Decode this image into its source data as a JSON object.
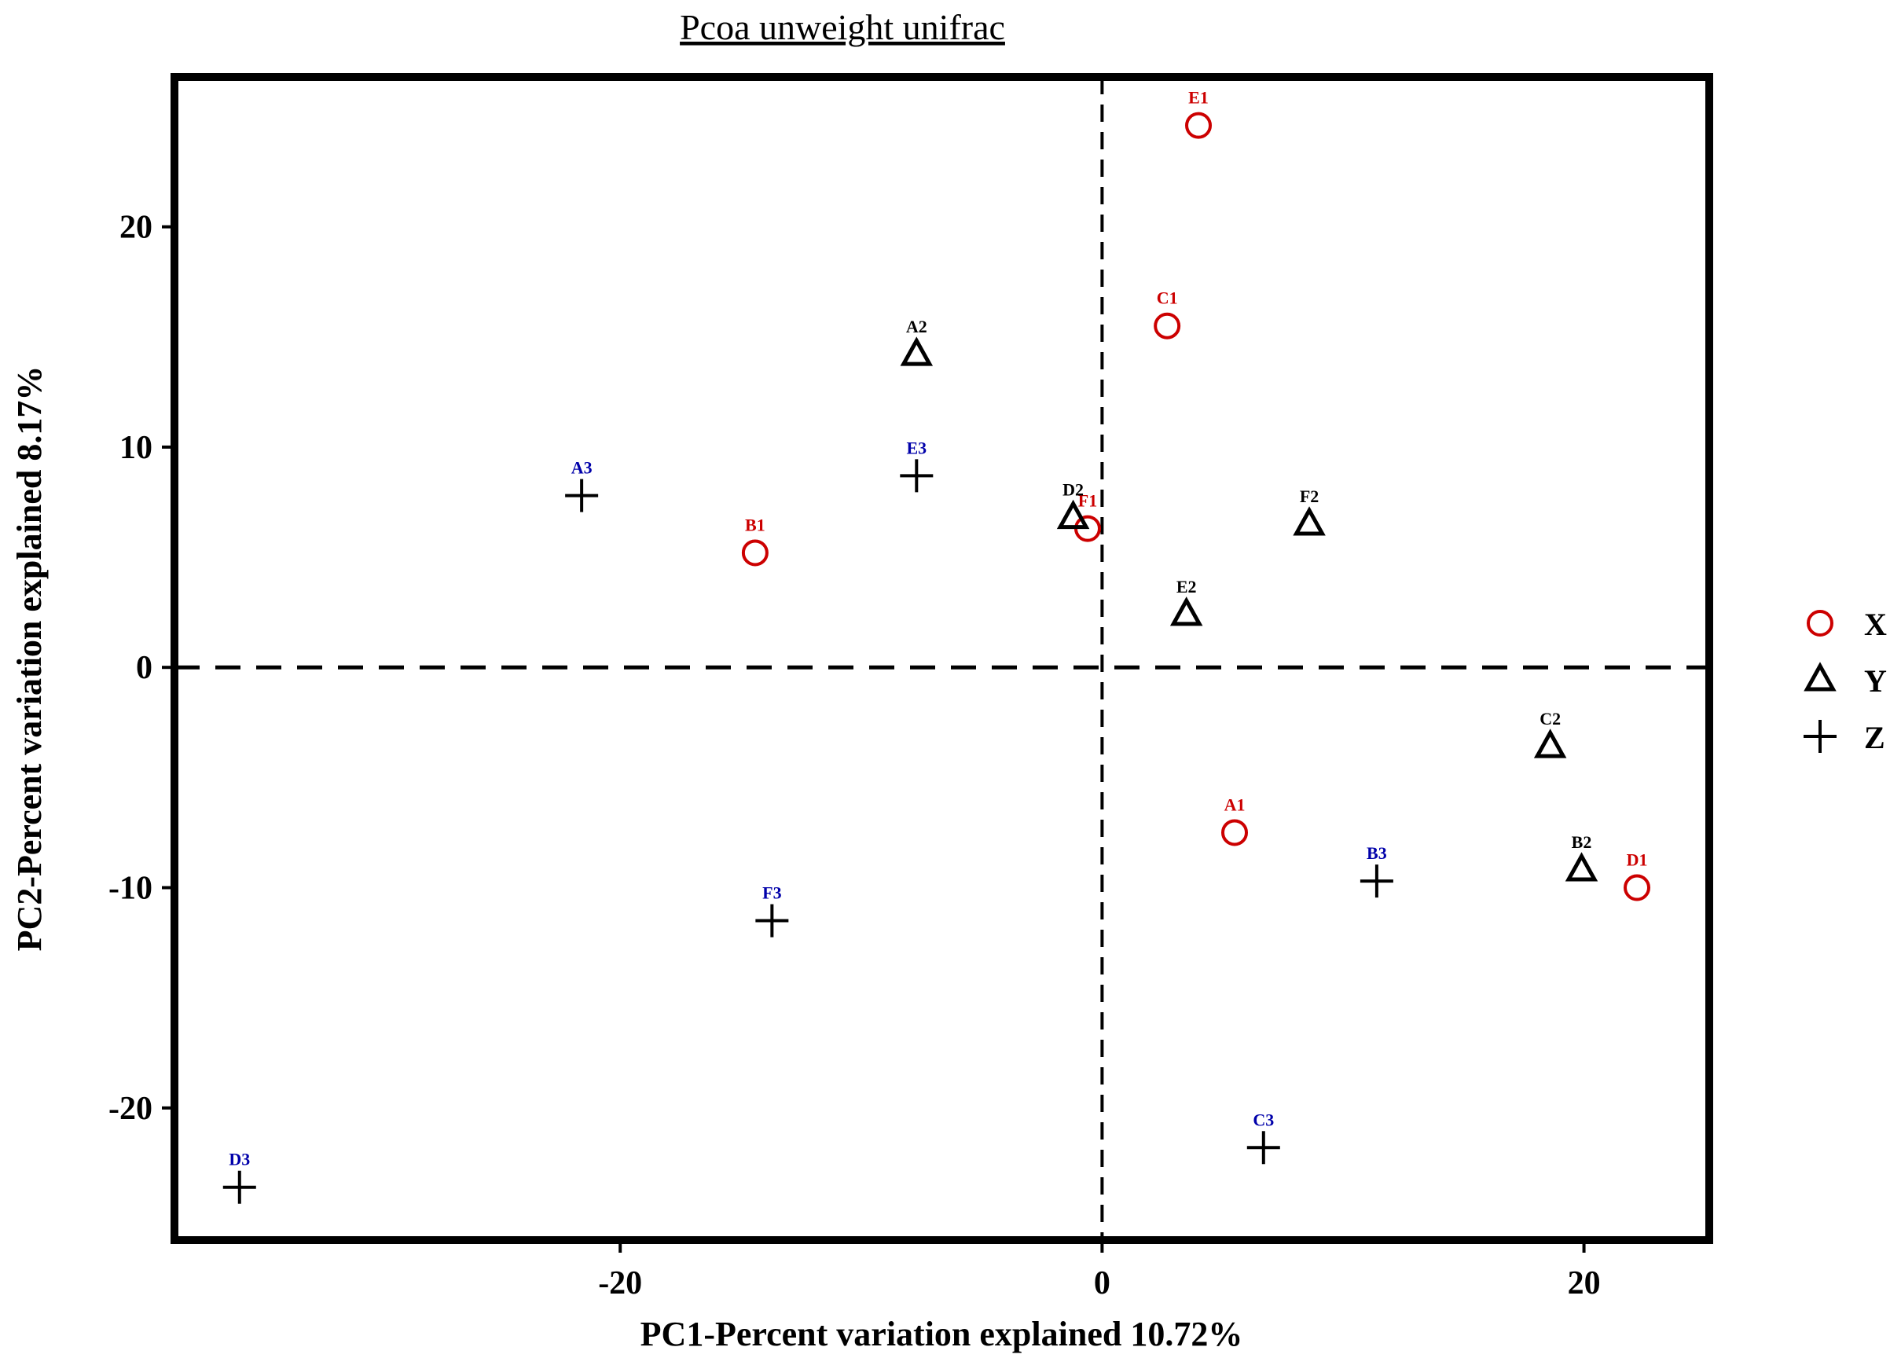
{
  "chart_data": {
    "type": "scatter",
    "title": "Pcoa unweight unifrac",
    "xlabel": "PC1-Percent variation explained 10.72%",
    "ylabel": "PC2-Percent variation explained 8.17%",
    "xlim": [
      -38.5,
      25.2
    ],
    "ylim": [
      -26,
      26.8
    ],
    "xticks": [
      -20,
      0,
      20
    ],
    "xtick_labels": [
      "-20",
      "0",
      "20"
    ],
    "yticks": [
      -20,
      -10,
      0,
      10,
      20
    ],
    "ytick_labels": [
      "-20",
      "-10",
      "0",
      "10",
      "20"
    ],
    "reference_lines": {
      "x": 0,
      "y": 0
    },
    "grid": false,
    "legend_position": "right",
    "series": [
      {
        "name": "X",
        "marker": "circle",
        "color": "#cc0000",
        "label_color": "#cc0000",
        "points": [
          {
            "label": "E1",
            "x": 4.0,
            "y": 24.6
          },
          {
            "label": "C1",
            "x": 2.7,
            "y": 15.5
          },
          {
            "label": "B1",
            "x": -14.4,
            "y": 5.2
          },
          {
            "label": "F1",
            "x": -0.6,
            "y": 6.3
          },
          {
            "label": "A1",
            "x": 5.5,
            "y": -7.5
          },
          {
            "label": "D1",
            "x": 22.2,
            "y": -10.0
          }
        ]
      },
      {
        "name": "Y",
        "marker": "triangle",
        "color": "#000000",
        "label_color": "#000000",
        "points": [
          {
            "label": "A2",
            "x": -7.7,
            "y": 14.2
          },
          {
            "label": "D2",
            "x": -1.2,
            "y": 6.8
          },
          {
            "label": "F2",
            "x": 8.6,
            "y": 6.5
          },
          {
            "label": "E2",
            "x": 3.5,
            "y": 2.4
          },
          {
            "label": "C2",
            "x": 18.6,
            "y": -3.6
          },
          {
            "label": "B2",
            "x": 19.9,
            "y": -9.2
          }
        ]
      },
      {
        "name": "Z",
        "marker": "plus",
        "color": "#000000",
        "label_color": "#0000aa",
        "points": [
          {
            "label": "A3",
            "x": -21.6,
            "y": 7.8
          },
          {
            "label": "E3",
            "x": -7.7,
            "y": 8.7
          },
          {
            "label": "F3",
            "x": -13.7,
            "y": -11.5
          },
          {
            "label": "B3",
            "x": 11.4,
            "y": -9.7
          },
          {
            "label": "C3",
            "x": 6.7,
            "y": -21.8
          },
          {
            "label": "D3",
            "x": -35.8,
            "y": -23.6
          }
        ]
      }
    ]
  }
}
